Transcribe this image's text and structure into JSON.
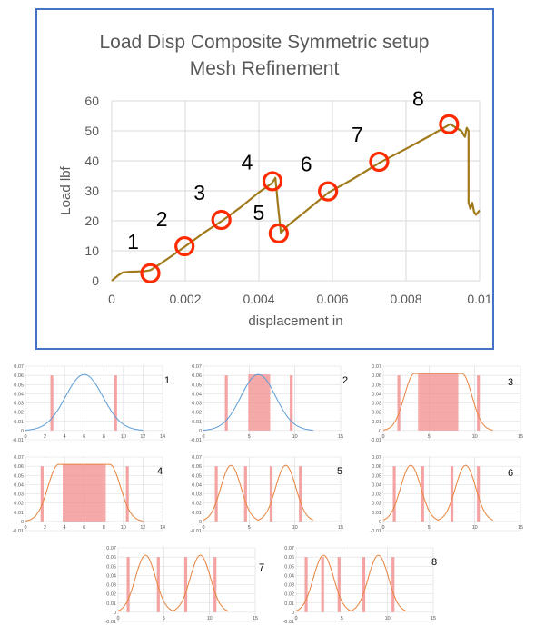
{
  "chart_data": [
    {
      "type": "line",
      "title": [
        "Load Disp Composite Symmetric setup",
        "Mesh Refinement"
      ],
      "xlabel": "displacement in",
      "ylabel": "Load lbf",
      "xlim": [
        0,
        0.01
      ],
      "ylim": [
        0,
        60
      ],
      "xticks": [
        0,
        0.002,
        0.004,
        0.006,
        0.008,
        0.01
      ],
      "xtick_labels": [
        "0",
        "0.002",
        "0.004",
        "0.006",
        "0.008",
        "0.01"
      ],
      "yticks": [
        0,
        10,
        20,
        30,
        40,
        50,
        60
      ],
      "ytick_labels": [
        "0",
        "10",
        "20",
        "30",
        "40",
        "50",
        "60"
      ],
      "grid": true,
      "line_color": "#a07a1a",
      "marker_color": "#ff2a00",
      "series": [
        {
          "x": [
            0,
            0.0001,
            0.0002,
            0.0003,
            0.0005,
            0.0007,
            0.0009,
            0.00105,
            0.0013,
            0.0016,
            0.002,
            0.0025,
            0.003,
            0.0035,
            0.004,
            0.00435,
            0.00445,
            0.00452,
            0.0046,
            0.0048,
            0.0052,
            0.0056,
            0.0059,
            0.0065,
            0.0073,
            0.008,
            0.0086,
            0.0092,
            0.0095,
            0.0096,
            0.00965,
            0.0097,
            0.0097,
            0.00975,
            0.0098,
            0.00985,
            0.0099,
            0.01
          ],
          "y": [
            0,
            1,
            2,
            2.8,
            3,
            3.1,
            3.2,
            3.5,
            5.5,
            8,
            11.5,
            16,
            20,
            24.5,
            29.5,
            32.5,
            34.3,
            25,
            16,
            18.5,
            22.5,
            26.5,
            29.5,
            33.5,
            39.5,
            44,
            48,
            52.2,
            50,
            48,
            51,
            50,
            26,
            24,
            26,
            23,
            22,
            23.5
          ]
        }
      ],
      "annotations": [
        {
          "label": "1",
          "x": 0.00105,
          "y": 2.5
        },
        {
          "label": "2",
          "x": 0.00198,
          "y": 11.5
        },
        {
          "label": "3",
          "x": 0.00298,
          "y": 20.3
        },
        {
          "label": "4",
          "x": 0.00437,
          "y": 33.2
        },
        {
          "label": "5",
          "x": 0.00454,
          "y": 15.8
        },
        {
          "label": "6",
          "x": 0.00588,
          "y": 29.8
        },
        {
          "label": "7",
          "x": 0.00727,
          "y": 39.7
        },
        {
          "label": "8",
          "x": 0.00917,
          "y": 52.2
        }
      ]
    },
    {
      "type": "line",
      "label": "1",
      "line_color": "#5b9bd5",
      "xlim": [
        0,
        14
      ],
      "xticks": [
        0,
        2,
        4,
        6,
        8,
        10,
        12,
        14
      ],
      "ylim": [
        -0.01,
        0.07
      ],
      "yticks": [
        -0.01,
        0,
        0.01,
        0.02,
        0.03,
        0.04,
        0.05,
        0.06,
        0.07
      ],
      "ytick_labels": [
        "-0.01",
        "0",
        "0.01",
        "0.02",
        "0.03",
        "0.04",
        "0.05",
        "0.06",
        "0.07"
      ],
      "peaks": [
        6
      ],
      "peak": 0.061,
      "flat": 0,
      "sigma": 1.9,
      "bars": [
        2.7,
        9.2
      ],
      "shaded": null
    },
    {
      "type": "line",
      "label": "2",
      "line_color": "#5b9bd5",
      "xlim": [
        0,
        15
      ],
      "xticks": [
        0,
        5,
        10,
        15
      ],
      "ylim": [
        -0.01,
        0.07
      ],
      "yticks": [
        -0.01,
        0,
        0.01,
        0.02,
        0.03,
        0.04,
        0.05,
        0.06,
        0.07
      ],
      "ytick_labels": [
        "-0.01",
        "0",
        "0.01",
        "0.02",
        "0.03",
        "0.04",
        "0.05",
        "0.06",
        "0.07"
      ],
      "peaks": [
        6
      ],
      "peak": 0.061,
      "flat": 0,
      "sigma": 1.9,
      "bars": [
        2.5,
        9.6
      ],
      "shaded": [
        4.9,
        7.3
      ]
    },
    {
      "type": "line",
      "label": "3",
      "line_color": "#e8823c",
      "xlim": [
        0,
        15
      ],
      "xticks": [
        0,
        5,
        10,
        15
      ],
      "ylim": [
        -0.01,
        0.07
      ],
      "yticks": [
        -0.01,
        0,
        0.01,
        0.02,
        0.03,
        0.04,
        0.05,
        0.06,
        0.07
      ],
      "ytick_labels": [
        "-0.01",
        "0",
        "0.01",
        "0.02",
        "0.03",
        "0.04",
        "0.05",
        "0.06",
        "0.07"
      ],
      "peaks": [
        6
      ],
      "peak": 0.062,
      "flat": 2.6,
      "sigma": 1.1,
      "bars": [
        1.7,
        10.4
      ],
      "shaded": [
        3.8,
        8.2
      ]
    },
    {
      "type": "line",
      "label": "4",
      "line_color": "#e8823c",
      "xlim": [
        0,
        14
      ],
      "xticks": [
        0,
        2,
        4,
        6,
        8,
        10,
        12,
        14
      ],
      "ylim": [
        -0.01,
        0.07
      ],
      "yticks": [
        -0.01,
        0,
        0.01,
        0.02,
        0.03,
        0.04,
        0.05,
        0.06,
        0.07
      ],
      "ytick_labels": [
        "-0.01",
        "0",
        "0.01",
        "0.02",
        "0.03",
        "0.04",
        "0.05",
        "0.06",
        "0.07"
      ],
      "peaks": [
        6
      ],
      "peak": 0.062,
      "flat": 2.6,
      "sigma": 1.1,
      "bars": [
        1.7,
        10.4
      ],
      "shaded": [
        3.8,
        8.2
      ]
    },
    {
      "type": "line",
      "label": "5",
      "line_color": "#e8823c",
      "xlim": [
        0,
        15
      ],
      "xticks": [
        0,
        5,
        10,
        15
      ],
      "ylim": [
        -0.01,
        0.07
      ],
      "yticks": [
        -0.01,
        0,
        0.01,
        0.02,
        0.03,
        0.04,
        0.05,
        0.06,
        0.07
      ],
      "ytick_labels": [
        "-0.01",
        "0",
        "0.01",
        "0.02",
        "0.03",
        "0.04",
        "0.05",
        "0.06",
        "0.07"
      ],
      "peaks": [
        3,
        9
      ],
      "peak": 0.061,
      "flat": 0,
      "sigma": 1.1,
      "bars": [
        1.4,
        4.6,
        7.4,
        10.6
      ],
      "shaded": null
    },
    {
      "type": "line",
      "label": "6",
      "line_color": "#e8823c",
      "xlim": [
        0,
        15
      ],
      "xticks": [
        0,
        5,
        10,
        15
      ],
      "ylim": [
        -0.01,
        0.07
      ],
      "yticks": [
        -0.01,
        0,
        0.01,
        0.02,
        0.03,
        0.04,
        0.05,
        0.06,
        0.07
      ],
      "ytick_labels": [
        "-0.01",
        "0",
        "0.01",
        "0.02",
        "0.03",
        "0.04",
        "0.05",
        "0.06",
        "0.07"
      ],
      "peaks": [
        3,
        9
      ],
      "peak": 0.061,
      "flat": 0,
      "sigma": 1.1,
      "bars": [
        1.2,
        4.3,
        7.5,
        10.4
      ],
      "shaded": null
    },
    {
      "type": "line",
      "label": "7",
      "line_color": "#e8823c",
      "xlim": [
        0,
        15
      ],
      "xticks": [
        0,
        5,
        10,
        15
      ],
      "ylim": [
        -0.01,
        0.07
      ],
      "yticks": [
        -0.01,
        0,
        0.01,
        0.02,
        0.03,
        0.04,
        0.05,
        0.06,
        0.07
      ],
      "ytick_labels": [
        "-0.01",
        "0",
        "0.01",
        "0.02",
        "0.03",
        "0.04",
        "0.05",
        "0.06",
        "0.07"
      ],
      "peaks": [
        3,
        9
      ],
      "peak": 0.062,
      "flat": 0,
      "sigma": 1.1,
      "bars": [
        1.1,
        4.4,
        7.4,
        10.6
      ],
      "shaded": null
    },
    {
      "type": "line",
      "label": "8",
      "line_color": "#e8823c",
      "xlim": [
        0,
        15
      ],
      "xticks": [
        0,
        5,
        10,
        15
      ],
      "ylim": [
        -0.01,
        0.07
      ],
      "yticks": [
        -0.01,
        0,
        0.01,
        0.02,
        0.03,
        0.04,
        0.05,
        0.06,
        0.07
      ],
      "ytick_labels": [
        "-0.01",
        "0",
        "0.01",
        "0.02",
        "0.03",
        "0.04",
        "0.05",
        "0.06",
        "0.07"
      ],
      "peaks": [
        3,
        9
      ],
      "peak": 0.062,
      "flat": 0,
      "sigma": 1.1,
      "bars": [
        1.1,
        2.9,
        4.7,
        7.4,
        10.6
      ],
      "shaded": null
    }
  ]
}
